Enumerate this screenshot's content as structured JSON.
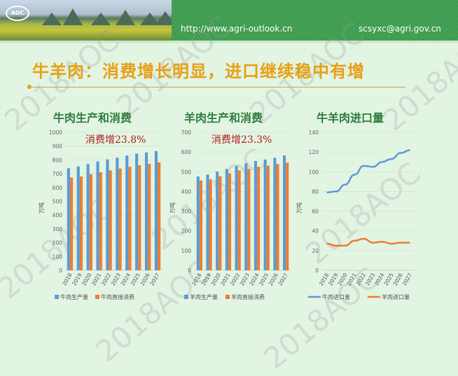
{
  "header": {
    "logo_text": "AOC",
    "url": "http://www.agri-outlook.cn",
    "email": "scsyxc@agri.gov.cn"
  },
  "slide_title": "牛羊肉：消费增长明显，进口继续稳中有增",
  "watermark": "2018AOC",
  "chart_data": [
    {
      "type": "bar",
      "title": "牛肉生产和消费",
      "annotation": "消费增23.8%",
      "ylabel": "万吨",
      "ylim": [
        0,
        1000
      ],
      "yticks": [
        0,
        100,
        200,
        300,
        400,
        500,
        600,
        700,
        800,
        900,
        1000
      ],
      "categories": [
        "2018",
        "2019",
        "2020",
        "2021",
        "2022",
        "2023",
        "2024",
        "2025",
        "2026",
        "2027"
      ],
      "series": [
        {
          "name": "牛肉生产量",
          "color": "#5b9bd5",
          "values": [
            740,
            753,
            770,
            789,
            804,
            816,
            832,
            845,
            855,
            864
          ]
        },
        {
          "name": "牛肉直接消费",
          "color": "#ed7d31",
          "values": [
            673,
            680,
            697,
            711,
            724,
            738,
            750,
            762,
            772,
            782
          ]
        }
      ],
      "legend": "bottom"
    },
    {
      "type": "bar",
      "title": "羊肉生产和消费",
      "annotation": "消费增23.3%",
      "ylabel": "万吨",
      "ylim": [
        0,
        700
      ],
      "yticks": [
        0,
        100,
        200,
        300,
        400,
        500,
        600,
        700
      ],
      "categories": [
        "2018",
        "2019",
        "2020",
        "2021",
        "2022",
        "2023",
        "2024",
        "2025",
        "2026",
        "2027"
      ],
      "series": [
        {
          "name": "羊肉生产量",
          "color": "#5b9bd5",
          "values": [
            476,
            486,
            501,
            514,
            529,
            543,
            555,
            562,
            571,
            583
          ]
        },
        {
          "name": "羊肉直接消费",
          "color": "#ed7d31",
          "values": [
            456,
            462,
            477,
            492,
            507,
            515,
            525,
            531,
            539,
            546
          ]
        }
      ],
      "legend": "bottom"
    },
    {
      "type": "line",
      "title": "牛羊肉进口量",
      "ylabel": "万吨",
      "ylim": [
        0,
        140
      ],
      "yticks": [
        0,
        20,
        40,
        60,
        80,
        100,
        120,
        140
      ],
      "categories": [
        "2018",
        "2019",
        "2020",
        "2021",
        "2022",
        "2023",
        "2024",
        "2025",
        "2026",
        "2027"
      ],
      "series": [
        {
          "name": "牛肉进口量",
          "color": "#5b9bd5",
          "values": [
            79,
            80,
            87,
            97,
            106,
            105,
            110,
            113,
            119,
            122
          ]
        },
        {
          "name": "羊肉进口量",
          "color": "#ed7d31",
          "values": [
            27,
            25,
            25,
            30,
            32,
            28,
            29,
            27,
            28,
            28
          ]
        }
      ],
      "legend": "bottom"
    }
  ]
}
